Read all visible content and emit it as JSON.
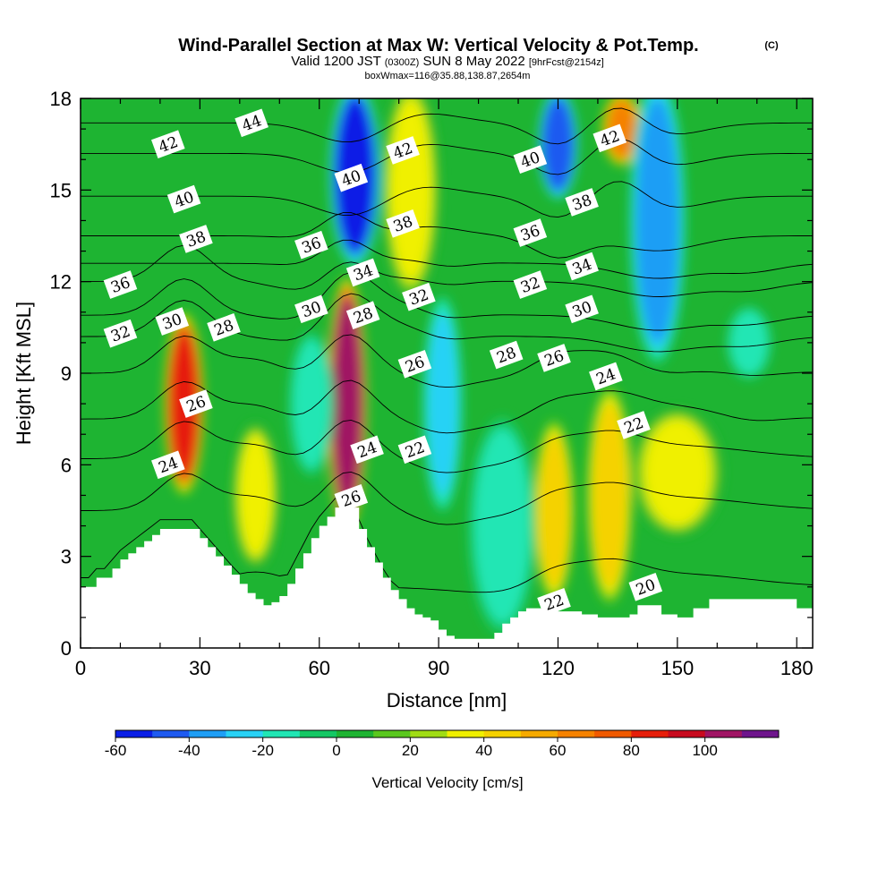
{
  "title": {
    "main": "Wind-Parallel Section at Max W: Vertical Velocity & Pot.Temp.",
    "copyright": "(C)",
    "valid_prefix": "Valid 1200 JST",
    "valid_utc": "(0300Z)",
    "valid_date": "SUN 8 May 2022",
    "forecast": "[9hrFcst@2154z]",
    "box_info": "boxWmax=116@35.88,138.87,2654m"
  },
  "chart_data": {
    "type": "heatmap",
    "xlabel": "Distance [nm]",
    "ylabel": "Height [Kft MSL]",
    "xlim": [
      0,
      184
    ],
    "ylim": [
      0,
      18
    ],
    "x_ticks": [
      0,
      30,
      60,
      90,
      120,
      150,
      180
    ],
    "x_tick_labels": [
      "0",
      "30",
      "60",
      "90",
      "120",
      "150",
      "180"
    ],
    "y_ticks": [
      0,
      3,
      6,
      9,
      12,
      15,
      18
    ],
    "y_tick_labels": [
      "0",
      "3",
      "6",
      "9",
      "12",
      "15",
      "18"
    ],
    "colorbar": {
      "title": "Vertical Velocity [cm/s]",
      "levels": [
        -60,
        -50,
        -40,
        -30,
        -20,
        -10,
        0,
        10,
        20,
        30,
        40,
        50,
        60,
        70,
        80,
        90,
        100,
        110
      ],
      "tick_values": [
        -60,
        -40,
        -20,
        0,
        20,
        40,
        60,
        80,
        100
      ],
      "tick_labels": [
        "-60",
        "-40",
        "-20",
        "0",
        "20",
        "40",
        "60",
        "80",
        "100"
      ],
      "colors": [
        "#0a1ee6",
        "#1e5af0",
        "#1e9ef5",
        "#28d2f5",
        "#20e6b4",
        "#14c864",
        "#1eb432",
        "#5ac81e",
        "#a0dc14",
        "#f0f000",
        "#f5d200",
        "#f5aa00",
        "#f58200",
        "#f05a00",
        "#e61e0a",
        "#c80a1e",
        "#a01464",
        "#6e148c"
      ]
    },
    "terrain_profile": {
      "x": [
        0,
        4,
        8,
        10,
        12,
        14,
        16,
        18,
        20,
        22,
        26,
        30,
        32,
        34,
        36,
        38,
        40,
        42,
        44,
        46,
        48,
        50,
        52,
        54,
        56,
        58,
        60,
        62,
        64,
        66,
        68,
        70,
        72,
        74,
        76,
        78,
        80,
        82,
        84,
        86,
        88,
        90,
        92,
        94,
        96,
        98,
        100,
        102,
        104,
        106,
        108,
        110,
        112,
        114,
        116,
        118,
        120,
        122,
        126,
        130,
        134,
        138,
        140,
        144,
        146,
        150,
        154,
        158,
        162,
        166,
        170,
        176,
        180,
        184
      ],
      "height_kft": [
        2.0,
        2.3,
        2.6,
        2.9,
        3.1,
        3.3,
        3.5,
        3.7,
        3.9,
        3.9,
        3.9,
        3.6,
        3.3,
        3.0,
        2.7,
        2.4,
        2.1,
        1.8,
        1.6,
        1.4,
        1.5,
        1.7,
        2.1,
        2.6,
        3.1,
        3.6,
        4.0,
        4.3,
        4.6,
        4.6,
        4.6,
        3.9,
        3.3,
        2.8,
        2.3,
        1.9,
        1.6,
        1.3,
        1.1,
        1.0,
        0.9,
        0.6,
        0.4,
        0.3,
        0.3,
        0.3,
        0.3,
        0.3,
        0.5,
        0.8,
        1.0,
        1.2,
        1.3,
        1.3,
        1.3,
        1.3,
        1.2,
        1.2,
        1.1,
        1.0,
        1.0,
        1.1,
        1.4,
        1.4,
        1.1,
        1.0,
        1.3,
        1.6,
        1.6,
        1.6,
        1.6,
        1.6,
        1.3,
        1.3
      ]
    },
    "vertical_velocity_features": [
      {
        "x": 26,
        "ylim": [
          5.5,
          10.5
        ],
        "width_nm": 5,
        "w_cm_s": 85
      },
      {
        "x": 67,
        "ylim": [
          4.5,
          11.5
        ],
        "width_nm": 5,
        "w_cm_s": 100
      },
      {
        "x": 69,
        "ylim": [
          13,
          18
        ],
        "width_nm": 7,
        "w_cm_s": -55
      },
      {
        "x": 83,
        "ylim": [
          12,
          18
        ],
        "width_nm": 8,
        "w_cm_s": 30
      },
      {
        "x": 91,
        "ylim": [
          5,
          11
        ],
        "width_nm": 5,
        "w_cm_s": -25
      },
      {
        "x": 106,
        "ylim": [
          1,
          7
        ],
        "width_nm": 10,
        "w_cm_s": -15
      },
      {
        "x": 119,
        "ylim": [
          2,
          7
        ],
        "width_nm": 5,
        "w_cm_s": 40
      },
      {
        "x": 133,
        "ylim": [
          2,
          8
        ],
        "width_nm": 6,
        "w_cm_s": 45
      },
      {
        "x": 136,
        "ylim": [
          16,
          18
        ],
        "width_nm": 5,
        "w_cm_s": 60
      },
      {
        "x": 145,
        "ylim": [
          10,
          18
        ],
        "width_nm": 8,
        "w_cm_s": -35
      },
      {
        "x": 150,
        "ylim": [
          4,
          7.5
        ],
        "width_nm": 14,
        "w_cm_s": 30
      },
      {
        "x": 168,
        "ylim": [
          9,
          11
        ],
        "width_nm": 6,
        "w_cm_s": -20
      },
      {
        "x": 120,
        "ylim": [
          15,
          18
        ],
        "width_nm": 5,
        "w_cm_s": -50
      },
      {
        "x": 44,
        "ylim": [
          3,
          7
        ],
        "width_nm": 6,
        "w_cm_s": 35
      },
      {
        "x": 58,
        "ylim": [
          6,
          10
        ],
        "width_nm": 6,
        "w_cm_s": -20
      }
    ],
    "isentropes": {
      "levels_K_offset": [
        20,
        22,
        24,
        26,
        28,
        30,
        32,
        34,
        36,
        38,
        40,
        42,
        44
      ],
      "reference_height_kft": [
        2.0,
        4.5,
        6.2,
        7.5,
        9.0,
        10.2,
        10.9,
        12.0,
        12.6,
        13.5,
        14.8,
        16.2,
        17.2
      ]
    },
    "contour_labels": [
      {
        "text": "44",
        "x": 43,
        "y": 17.2
      },
      {
        "text": "42",
        "x": 22,
        "y": 16.5
      },
      {
        "text": "42",
        "x": 81,
        "y": 16.3
      },
      {
        "text": "42",
        "x": 133,
        "y": 16.7
      },
      {
        "text": "40",
        "x": 26,
        "y": 14.7
      },
      {
        "text": "40",
        "x": 68,
        "y": 15.4
      },
      {
        "text": "40",
        "x": 113,
        "y": 16.0
      },
      {
        "text": "38",
        "x": 29,
        "y": 13.4
      },
      {
        "text": "38",
        "x": 81,
        "y": 13.9
      },
      {
        "text": "38",
        "x": 126,
        "y": 14.6
      },
      {
        "text": "36",
        "x": 10,
        "y": 11.9
      },
      {
        "text": "36",
        "x": 58,
        "y": 13.2
      },
      {
        "text": "36",
        "x": 113,
        "y": 13.6
      },
      {
        "text": "34",
        "x": 71,
        "y": 12.3
      },
      {
        "text": "34",
        "x": 126,
        "y": 12.5
      },
      {
        "text": "32",
        "x": 10,
        "y": 10.3
      },
      {
        "text": "32",
        "x": 85,
        "y": 11.5
      },
      {
        "text": "32",
        "x": 113,
        "y": 11.9
      },
      {
        "text": "30",
        "x": 23,
        "y": 10.7
      },
      {
        "text": "30",
        "x": 58,
        "y": 11.1
      },
      {
        "text": "30",
        "x": 126,
        "y": 11.1
      },
      {
        "text": "28",
        "x": 36,
        "y": 10.5
      },
      {
        "text": "28",
        "x": 71,
        "y": 10.9
      },
      {
        "text": "28",
        "x": 107,
        "y": 9.6
      },
      {
        "text": "26",
        "x": 29,
        "y": 8.0
      },
      {
        "text": "26",
        "x": 84,
        "y": 9.3
      },
      {
        "text": "26",
        "x": 119,
        "y": 9.5
      },
      {
        "text": "26",
        "x": 68,
        "y": 4.9
      },
      {
        "text": "24",
        "x": 22,
        "y": 6.0
      },
      {
        "text": "24",
        "x": 72,
        "y": 6.5
      },
      {
        "text": "24",
        "x": 132,
        "y": 8.9
      },
      {
        "text": "22",
        "x": 84,
        "y": 6.5
      },
      {
        "text": "22",
        "x": 139,
        "y": 7.3
      },
      {
        "text": "22",
        "x": 119,
        "y": 1.5
      },
      {
        "text": "20",
        "x": 142,
        "y": 2.0
      }
    ]
  }
}
